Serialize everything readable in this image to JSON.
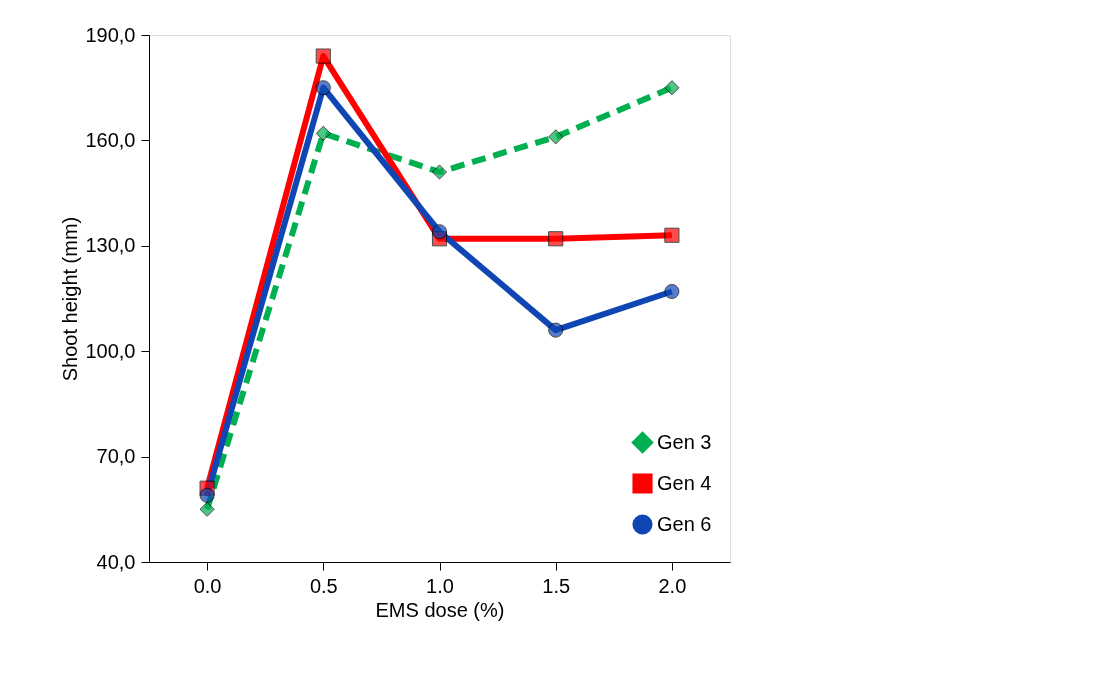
{
  "chart_data": {
    "type": "line",
    "xlabel": "EMS dose (%)",
    "ylabel": "Shoot height (mm)",
    "categories": [
      "0.0",
      "0.5",
      "1.0",
      "1.5",
      "2.0"
    ],
    "ylim": [
      40,
      190
    ],
    "yticks": [
      {
        "value": 40,
        "label": "40,0"
      },
      {
        "value": 70,
        "label": "70,0"
      },
      {
        "value": 100,
        "label": "100,0"
      },
      {
        "value": 130,
        "label": "130,0"
      },
      {
        "value": 160,
        "label": "160,0"
      },
      {
        "value": 190,
        "label": "190,0"
      }
    ],
    "grid": false,
    "legend": "bottom right",
    "series": [
      {
        "name": "Gen 3",
        "color": "#00b050",
        "marker": "diamond",
        "line_style": "dashed",
        "values": [
          55,
          162,
          151,
          161,
          175
        ]
      },
      {
        "name": "Gen 4",
        "color": "#ff0000",
        "marker": "square",
        "line_style": "solid",
        "values": [
          61,
          184,
          132,
          132,
          133
        ]
      },
      {
        "name": "Gen 6",
        "color": "#0f46b4",
        "marker": "circle",
        "line_style": "solid",
        "values": [
          59,
          175,
          134,
          106,
          117
        ]
      }
    ]
  }
}
